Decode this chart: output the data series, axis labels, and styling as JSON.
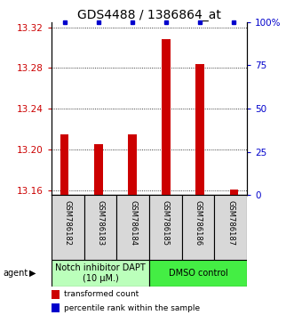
{
  "title": "GDS4488 / 1386864_at",
  "samples": [
    "GSM786182",
    "GSM786183",
    "GSM786184",
    "GSM786185",
    "GSM786186",
    "GSM786187"
  ],
  "bar_values": [
    13.215,
    13.205,
    13.215,
    13.308,
    13.284,
    13.161
  ],
  "bar_base": 13.155,
  "ylim_left": [
    13.155,
    13.325
  ],
  "ylim_right": [
    0,
    100
  ],
  "yticks_left": [
    13.16,
    13.2,
    13.24,
    13.28,
    13.32
  ],
  "yticks_right": [
    0,
    25,
    50,
    75,
    100
  ],
  "bar_color": "#cc0000",
  "dot_color": "#0000cc",
  "group1_label": "Notch inhibitor DAPT\n(10 μM.)",
  "group2_label": "DMSO control",
  "group1_color": "#bbffbb",
  "group2_color": "#44ee44",
  "legend_red": "transformed count",
  "legend_blue": "percentile rank within the sample",
  "agent_label": "agent",
  "bar_width": 0.25,
  "title_fontsize": 10,
  "tick_fontsize": 7.5,
  "sample_fontsize": 6,
  "group_fontsize": 7,
  "legend_fontsize": 6.5
}
